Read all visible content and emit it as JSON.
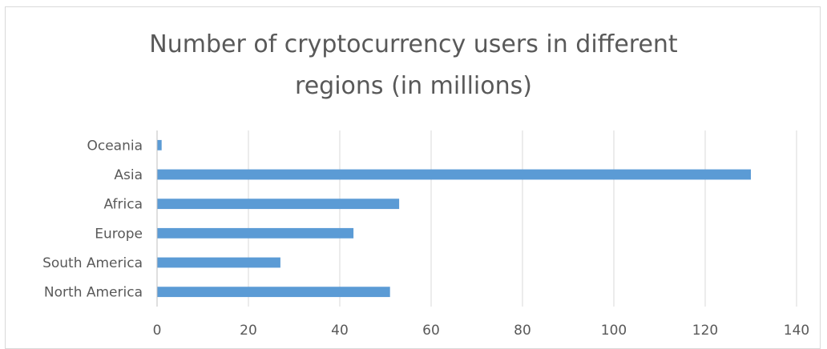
{
  "chart_data": {
    "type": "bar",
    "orientation": "horizontal",
    "title_lines": [
      "Number of cryptocurrency users in different",
      "regions (in millions)"
    ],
    "categories": [
      "North America",
      "South America",
      "Europe",
      "Africa",
      "Asia",
      "Oceania"
    ],
    "values": [
      51,
      27,
      43,
      53,
      130,
      1
    ],
    "xlim": [
      0,
      140
    ],
    "xticks": [
      0,
      20,
      40,
      60,
      80,
      100,
      120,
      140
    ],
    "grid": "vertical",
    "legend": "none",
    "bar_color": "#5b9bd5",
    "grid_color": "#d9d9d9",
    "text_color": "#595959"
  }
}
